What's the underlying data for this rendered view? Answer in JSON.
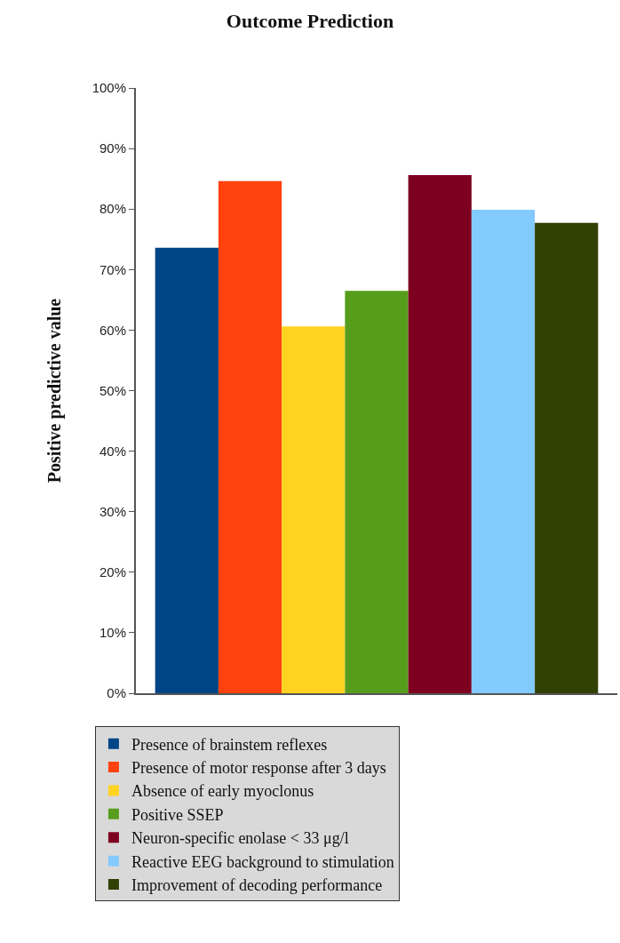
{
  "chart_data": {
    "type": "bar",
    "title": "Outcome Prediction",
    "ylabel": "Positive predictive value",
    "categories": [
      null
    ],
    "series": [
      {
        "name": "Presence of brainstem reflexes",
        "color": "#004586",
        "values": [
          73.6
        ]
      },
      {
        "name": "Presence of motor response after 3 days",
        "color": "#ff420e",
        "values": [
          84.6
        ]
      },
      {
        "name": "Absence of early myoclonus",
        "color": "#ffd320",
        "values": [
          60.6
        ]
      },
      {
        "name": "Positive SSEP",
        "color": "#579d1c",
        "values": [
          66.5
        ]
      },
      {
        "name": "Neuron-specific enolase < 33 μg/l",
        "color": "#7e0021",
        "values": [
          85.6
        ]
      },
      {
        "name": "Reactive EEG background to stimulation",
        "color": "#83caff",
        "values": [
          79.9
        ]
      },
      {
        "name": "Improvement of decoding performance",
        "color": "#314004",
        "values": [
          77.7
        ]
      }
    ],
    "ylim": [
      0,
      100
    ],
    "yticks": [
      {
        "value": 0,
        "label": "0%"
      },
      {
        "value": 10,
        "label": "10%"
      },
      {
        "value": 20,
        "label": "20%"
      },
      {
        "value": 30,
        "label": "30%"
      },
      {
        "value": 40,
        "label": "40%"
      },
      {
        "value": 50,
        "label": "50%"
      },
      {
        "value": 60,
        "label": "60%"
      },
      {
        "value": 70,
        "label": "70%"
      },
      {
        "value": 80,
        "label": "80%"
      },
      {
        "value": 90,
        "label": "90%"
      },
      {
        "value": 100,
        "label": "100%"
      }
    ],
    "legend": "bottom"
  }
}
